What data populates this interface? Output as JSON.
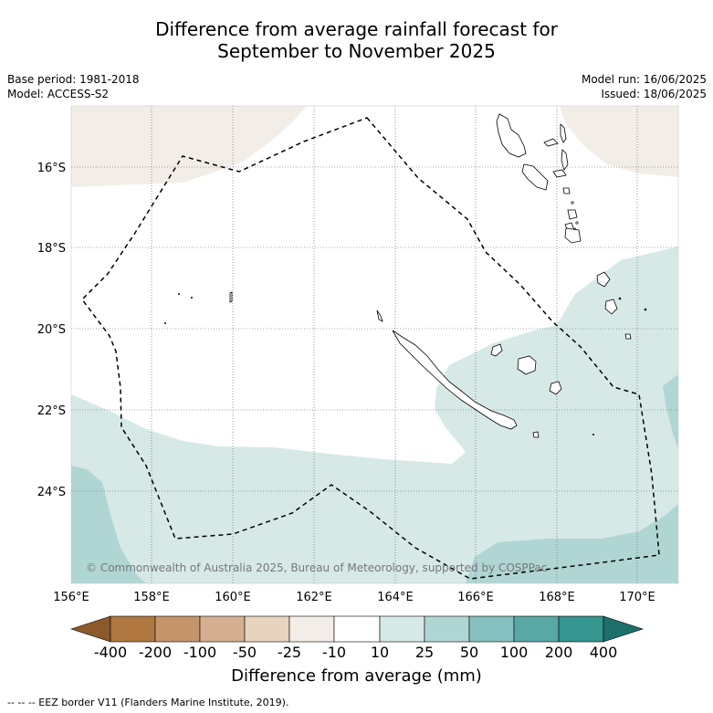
{
  "title": {
    "line1": "Difference from average rainfall forecast for",
    "line2": "September to November 2025"
  },
  "meta": {
    "base_period": "Base period: 1981-2018",
    "model": "Model: ACCESS-S2",
    "model_run": "Model run: 16/06/2025",
    "issued": "Issued: 18/06/2025"
  },
  "map": {
    "lat_labels": [
      "16°S",
      "18°S",
      "20°S",
      "22°S",
      "24°S"
    ],
    "lon_labels": [
      "156°E",
      "158°E",
      "160°E",
      "162°E",
      "164°E",
      "166°E",
      "168°E",
      "170°E"
    ],
    "copyright": "© Commonwealth of Australia 2025, Bureau of Meteorology, supported by COSPPac"
  },
  "colorbar": {
    "title": "Difference from average (mm)",
    "tick_labels": [
      "-400",
      "-200",
      "-100",
      "-50",
      "-25",
      "-10",
      "10",
      "25",
      "50",
      "100",
      "200",
      "400"
    ],
    "colors": [
      "#8c5a2a",
      "#b07840",
      "#c4956a",
      "#d4b090",
      "#e6d3c0",
      "#f2ede6",
      "#ffffff",
      "#d6e9e7",
      "#b0d6d4",
      "#86c1bf",
      "#5aa8a6",
      "#35958f",
      "#1d6f6b"
    ]
  },
  "footnote": "--  --  -- EEZ border V11 (Flanders Marine Institute, 2019)."
}
